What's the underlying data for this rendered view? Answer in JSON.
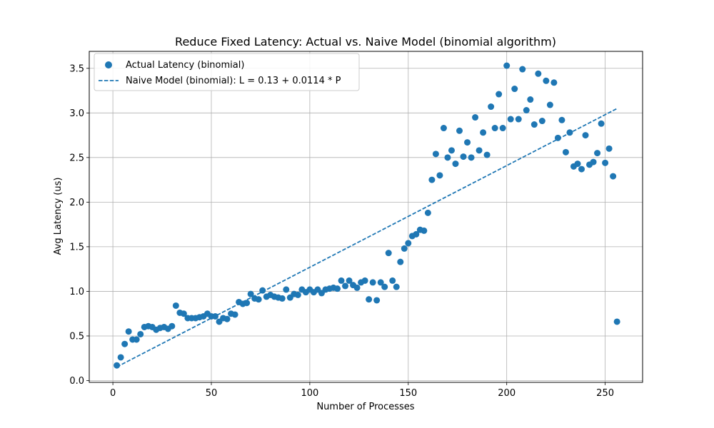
{
  "chart_data": {
    "type": "scatter",
    "title": "Reduce Fixed Latency: Actual vs. Naive Model (binomial algorithm)",
    "xlabel": "Number of Processes",
    "ylabel": "Avg Latency (us)",
    "xlim": [
      -12,
      269
    ],
    "ylim": [
      -0.02,
      3.69
    ],
    "xticks": [
      0,
      50,
      100,
      150,
      200,
      250
    ],
    "yticks": [
      0.0,
      0.5,
      1.0,
      1.5,
      2.0,
      2.5,
      3.0,
      3.5
    ],
    "grid": true,
    "legend_position": "top-left",
    "series": [
      {
        "name": "Actual Latency (binomial)",
        "kind": "scatter",
        "color": "#1f77b4",
        "x": [
          2,
          4,
          6,
          8,
          10,
          12,
          14,
          16,
          18,
          20,
          22,
          24,
          26,
          28,
          30,
          32,
          34,
          36,
          38,
          40,
          42,
          44,
          46,
          48,
          50,
          52,
          54,
          56,
          58,
          60,
          62,
          64,
          66,
          68,
          70,
          72,
          74,
          76,
          78,
          80,
          82,
          84,
          86,
          88,
          90,
          92,
          94,
          96,
          98,
          100,
          102,
          104,
          106,
          108,
          110,
          112,
          114,
          116,
          118,
          120,
          122,
          124,
          126,
          128,
          130,
          132,
          134,
          136,
          138,
          140,
          142,
          144,
          146,
          148,
          150,
          152,
          154,
          156,
          158,
          160,
          162,
          164,
          166,
          168,
          170,
          172,
          174,
          176,
          178,
          180,
          182,
          184,
          186,
          188,
          190,
          192,
          194,
          196,
          198,
          200,
          202,
          204,
          206,
          208,
          210,
          212,
          214,
          216,
          218,
          220,
          222,
          224,
          226,
          228,
          230,
          232,
          234,
          236,
          238,
          240,
          242,
          244,
          246,
          248,
          250,
          252,
          254,
          256
        ],
        "y": [
          0.17,
          0.26,
          0.41,
          0.55,
          0.46,
          0.46,
          0.52,
          0.6,
          0.61,
          0.6,
          0.57,
          0.59,
          0.6,
          0.58,
          0.61,
          0.84,
          0.76,
          0.75,
          0.7,
          0.7,
          0.7,
          0.71,
          0.72,
          0.75,
          0.72,
          0.72,
          0.66,
          0.7,
          0.69,
          0.75,
          0.74,
          0.88,
          0.86,
          0.87,
          0.97,
          0.92,
          0.91,
          1.01,
          0.94,
          0.96,
          0.94,
          0.93,
          0.92,
          1.02,
          0.93,
          0.97,
          0.96,
          1.02,
          0.99,
          1.02,
          0.99,
          1.02,
          0.98,
          1.02,
          1.03,
          1.04,
          1.03,
          1.12,
          1.06,
          1.12,
          1.07,
          1.04,
          1.1,
          1.12,
          0.91,
          1.1,
          0.9,
          1.1,
          1.05,
          1.43,
          1.12,
          1.05,
          1.33,
          1.48,
          1.54,
          1.62,
          1.64,
          1.69,
          1.68,
          1.88,
          2.25,
          2.54,
          2.3,
          2.83,
          2.5,
          2.58,
          2.43,
          2.8,
          2.51,
          2.67,
          2.5,
          2.95,
          2.58,
          2.78,
          2.53,
          3.07,
          2.83,
          3.21,
          2.83,
          3.53,
          2.93,
          3.27,
          2.93,
          3.49,
          3.03,
          3.15,
          2.87,
          3.44,
          2.91,
          3.36,
          3.09,
          3.34,
          2.72,
          2.92,
          2.56,
          2.78,
          2.4,
          2.43,
          2.37,
          2.75,
          2.42,
          2.45,
          2.55,
          2.88,
          2.44,
          2.6,
          2.29,
          0.66
        ]
      },
      {
        "name": "Naive Model (binomial): L = 0.13 + 0.0114 * P",
        "kind": "line",
        "style": "dashed",
        "color": "#1f77b4",
        "intercept": 0.13,
        "slope": 0.0114,
        "x_range": [
          2,
          256
        ]
      }
    ]
  }
}
